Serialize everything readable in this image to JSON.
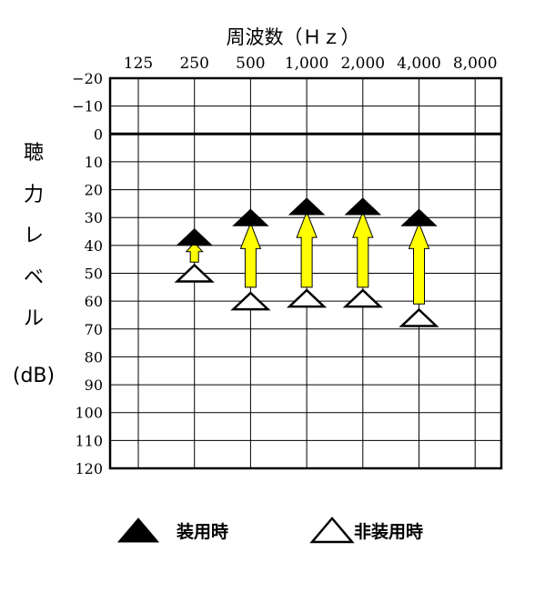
{
  "chart_data": {
    "type": "scatter",
    "title": "周波数（Ｈｚ）",
    "ylabel_chars": [
      "聴",
      "力",
      "レ",
      "ベ",
      "ル"
    ],
    "ylabel_unit": "(dB)",
    "x_categories": [
      "125",
      "250",
      "500",
      "1,000",
      "2,000",
      "4,000",
      "8,000"
    ],
    "y_ticks": [
      -20,
      -10,
      0,
      10,
      20,
      30,
      40,
      50,
      60,
      70,
      80,
      90,
      100,
      110,
      120
    ],
    "y_tick_labels": [
      "−20",
      "−10",
      "0",
      "10",
      "20",
      "30",
      "40",
      "50",
      "60",
      "70",
      "80",
      "90",
      "100",
      "110",
      "120"
    ],
    "ylim": [
      -20,
      120
    ],
    "y_inverted": true,
    "zero_line": 0,
    "series": [
      {
        "name": "装用時",
        "marker": "filled-triangle",
        "color": "#000000",
        "points": [
          {
            "x": "250",
            "y": 37
          },
          {
            "x": "500",
            "y": 30
          },
          {
            "x": "1,000",
            "y": 26
          },
          {
            "x": "2,000",
            "y": 26
          },
          {
            "x": "4,000",
            "y": 30
          }
        ]
      },
      {
        "name": "非装用時",
        "marker": "open-triangle",
        "color": "#000000",
        "points": [
          {
            "x": "250",
            "y": 50
          },
          {
            "x": "500",
            "y": 60
          },
          {
            "x": "1,000",
            "y": 59
          },
          {
            "x": "2,000",
            "y": 59
          },
          {
            "x": "4,000",
            "y": 66
          }
        ]
      }
    ],
    "arrows": {
      "color": "#ffff00",
      "stroke": "#000000",
      "items": [
        {
          "x": "250",
          "from": 46,
          "to": 39
        },
        {
          "x": "500",
          "from": 55,
          "to": 32
        },
        {
          "x": "1,000",
          "from": 55,
          "to": 28
        },
        {
          "x": "2,000",
          "from": 55,
          "to": 28
        },
        {
          "x": "4,000",
          "from": 61,
          "to": 32
        }
      ]
    },
    "legend": {
      "placement": "bottom",
      "items": [
        {
          "label": "装用時",
          "marker": "filled-triangle"
        },
        {
          "label": "非装用時",
          "marker": "open-triangle"
        }
      ]
    }
  }
}
